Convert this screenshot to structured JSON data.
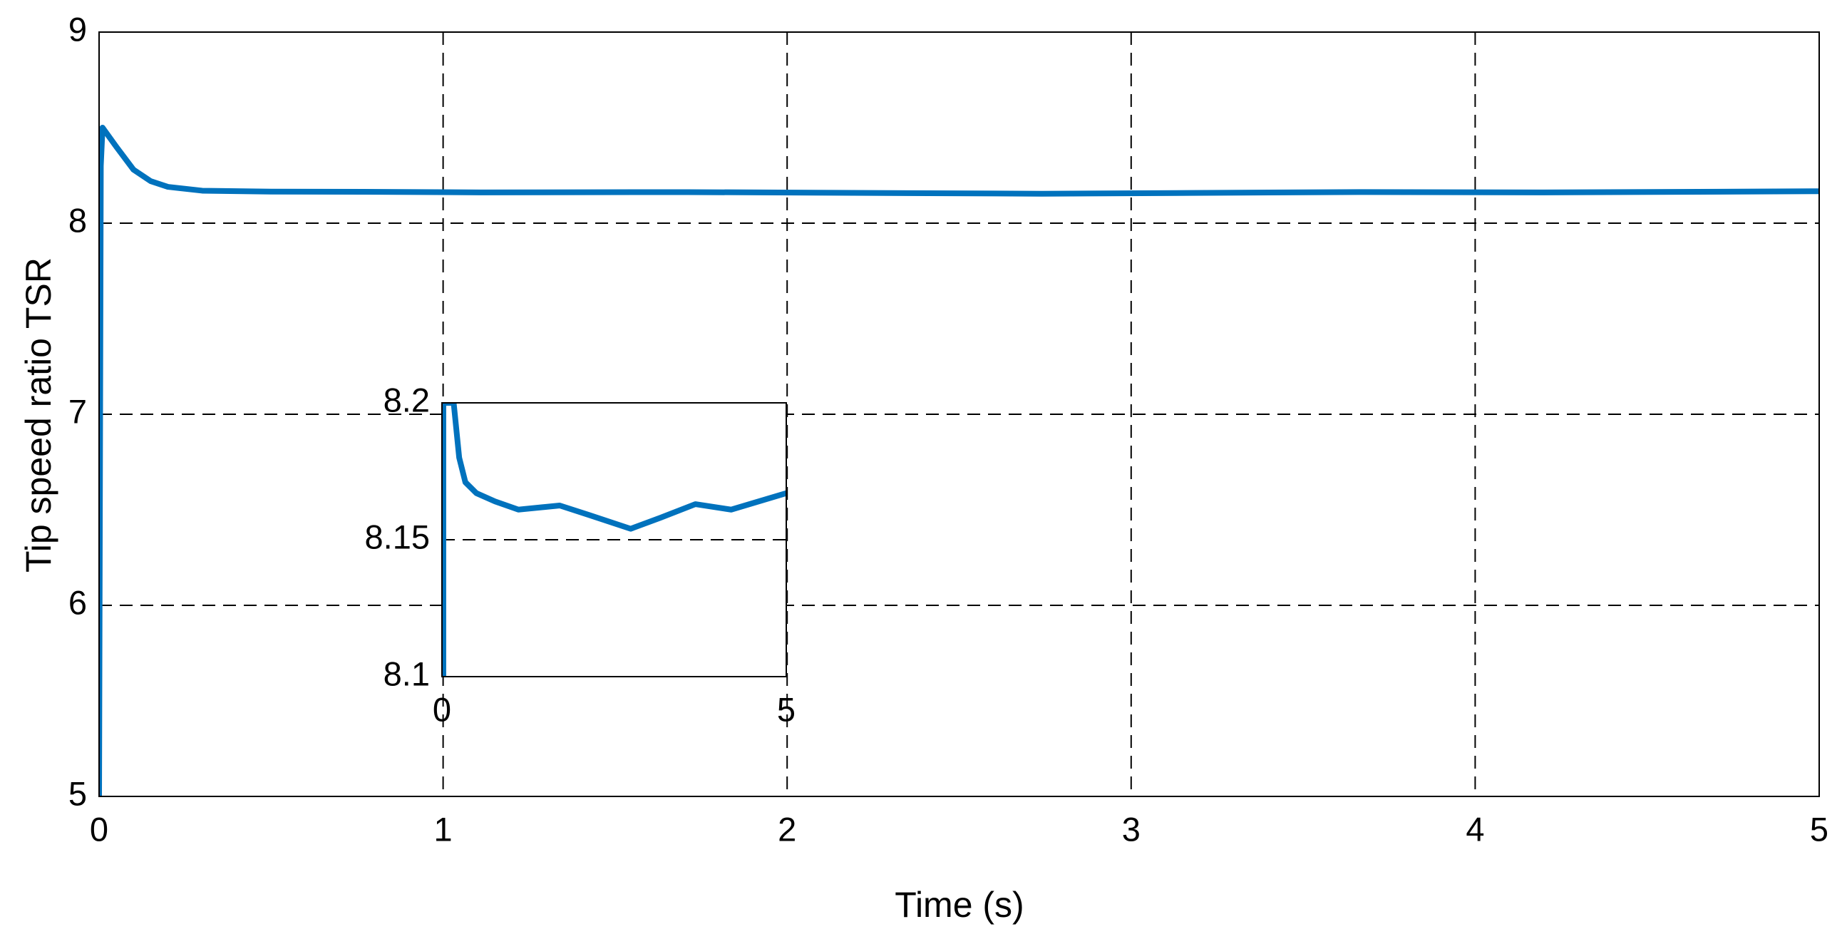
{
  "chart_data": [
    {
      "type": "line",
      "x_label": "Time (s)",
      "y_label": "Tip speed ratio TSR",
      "x": [
        0,
        0.005,
        0.01,
        0.05,
        0.1,
        0.15,
        0.2,
        0.3,
        0.5,
        0.77,
        1.11,
        1.71,
        2.14,
        2.74,
        3.17,
        3.68,
        4.2,
        5
      ],
      "values": [
        5,
        8.3,
        8.5,
        8.4,
        8.28,
        8.22,
        8.19,
        8.17,
        8.165,
        8.164,
        8.161,
        8.1625,
        8.159,
        8.154,
        8.158,
        8.163,
        8.161,
        8.167
      ],
      "color": "#0072bd",
      "xlim": [
        0,
        5
      ],
      "xticks": [
        0,
        1,
        2,
        3,
        4,
        5
      ],
      "ylim": [
        5,
        9
      ],
      "yticks": [
        5,
        6,
        7,
        8,
        9
      ],
      "grid": true
    },
    {
      "type": "line",
      "x": [
        0.02,
        0.02,
        0.17,
        0.25,
        0.34,
        0.5,
        0.77,
        1.11,
        1.71,
        2.14,
        2.74,
        3.17,
        3.68,
        4.2,
        5
      ],
      "values": [
        8.1,
        8.2,
        8.2,
        8.18,
        8.171,
        8.167,
        8.164,
        8.161,
        8.1625,
        8.159,
        8.154,
        8.158,
        8.163,
        8.161,
        8.167
      ],
      "color": "#0072bd",
      "xlim": [
        0,
        5
      ],
      "xticks": [
        0,
        5
      ],
      "ylim": [
        8.1,
        8.2
      ],
      "yticks": [
        8.1,
        8.15,
        8.2
      ],
      "grid": "y"
    }
  ]
}
